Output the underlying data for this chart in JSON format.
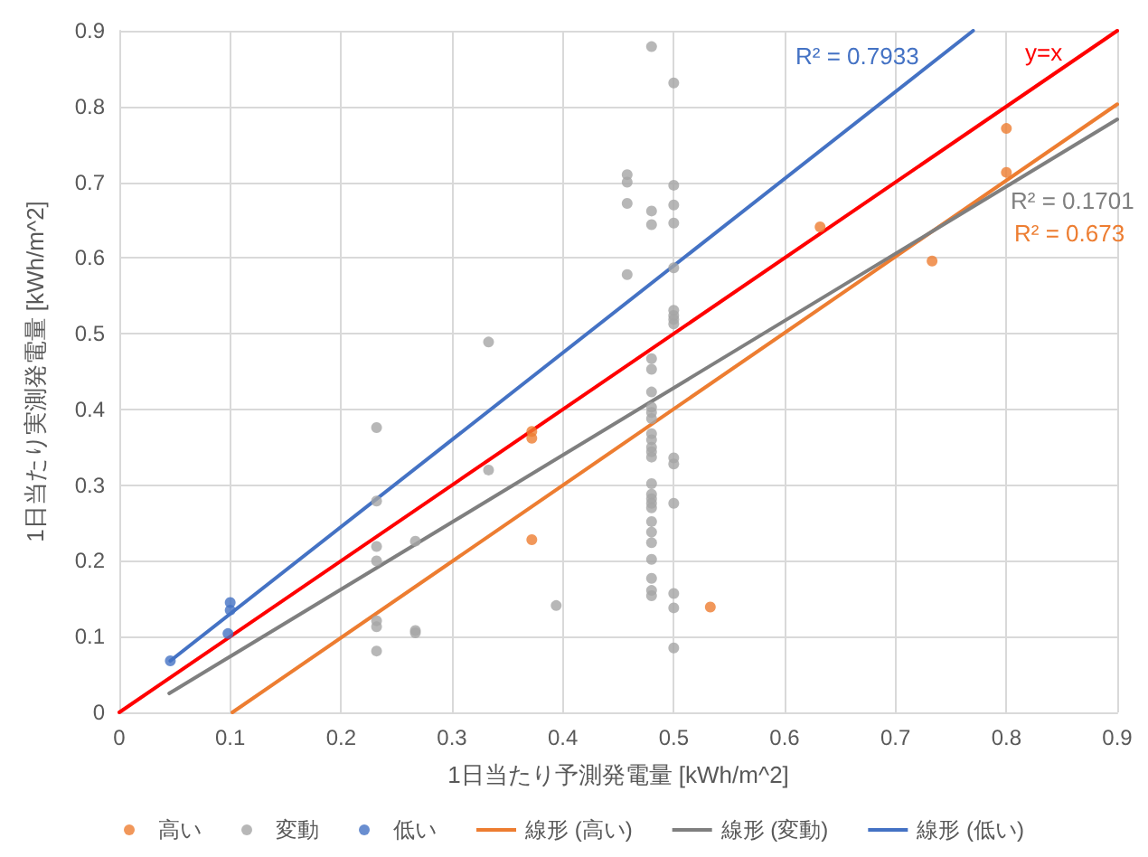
{
  "chart_data": {
    "type": "scatter",
    "xlabel": "1日当たり予測発電量 [kWh/m^2]",
    "ylabel": "1日当たり実測発電量 [kWh/m^2]",
    "xlim": [
      0,
      0.9
    ],
    "ylim": [
      0,
      0.9
    ],
    "xticks": [
      0,
      0.1,
      0.2,
      0.3,
      0.4,
      0.5,
      0.6,
      0.7,
      0.8,
      0.9
    ],
    "yticks": [
      0,
      0.1,
      0.2,
      0.3,
      0.4,
      0.5,
      0.6,
      0.7,
      0.8,
      0.9
    ],
    "grid": true,
    "legend": "bottom",
    "marker": "circle",
    "series": [
      {
        "name": "高い",
        "color": "#ed7d31",
        "x": [
          0.372,
          0.372,
          0.372,
          0.533,
          0.632,
          0.733,
          0.8,
          0.8
        ],
        "values": [
          0.371,
          0.362,
          0.228,
          0.139,
          0.641,
          0.596,
          0.771,
          0.713
        ]
      },
      {
        "name": "変動",
        "color": "#a5a5a5",
        "x": [
          0.232,
          0.232,
          0.232,
          0.232,
          0.232,
          0.232,
          0.232,
          0.267,
          0.267,
          0.267,
          0.333,
          0.333,
          0.394,
          0.458,
          0.458,
          0.458,
          0.458,
          0.48,
          0.48,
          0.48,
          0.48,
          0.48,
          0.48,
          0.48,
          0.48,
          0.48,
          0.48,
          0.48,
          0.48,
          0.48,
          0.48,
          0.48,
          0.48,
          0.48,
          0.48,
          0.48,
          0.48,
          0.48,
          0.48,
          0.48,
          0.48,
          0.48,
          0.48,
          0.5,
          0.5,
          0.5,
          0.5,
          0.5,
          0.5,
          0.5,
          0.5,
          0.5,
          0.5,
          0.5,
          0.5,
          0.5,
          0.5,
          0.5
        ],
        "values": [
          0.376,
          0.279,
          0.219,
          0.2,
          0.121,
          0.113,
          0.081,
          0.226,
          0.108,
          0.105,
          0.489,
          0.32,
          0.141,
          0.71,
          0.7,
          0.672,
          0.578,
          0.879,
          0.662,
          0.644,
          0.467,
          0.453,
          0.423,
          0.403,
          0.396,
          0.388,
          0.368,
          0.36,
          0.35,
          0.344,
          0.337,
          0.302,
          0.288,
          0.282,
          0.276,
          0.27,
          0.252,
          0.238,
          0.224,
          0.202,
          0.177,
          0.161,
          0.154,
          0.831,
          0.696,
          0.67,
          0.646,
          0.587,
          0.531,
          0.524,
          0.519,
          0.513,
          0.336,
          0.328,
          0.276,
          0.157,
          0.138,
          0.085
        ]
      },
      {
        "name": "低い",
        "color": "#4472c4",
        "x": [
          0.046,
          0.098,
          0.1,
          0.1
        ],
        "values": [
          0.068,
          0.104,
          0.135,
          0.145
        ]
      },
      {
        "name": "線形 (高い)",
        "type": "line",
        "marker": "none",
        "color": "#ed7d31",
        "x": [
          0.102,
          0.9
        ],
        "values": [
          0,
          0.803
        ]
      },
      {
        "name": "線形 (変動)",
        "type": "line",
        "marker": "none",
        "color": "#7f7f7f",
        "x": [
          0.045,
          0.9
        ],
        "values": [
          0.025,
          0.783
        ]
      },
      {
        "name": "線形 (低い)",
        "type": "line",
        "marker": "none",
        "color": "#4472c4",
        "x": [
          0.046,
          0.77
        ],
        "values": [
          0.068,
          0.9
        ]
      },
      {
        "type": "line",
        "marker": "none",
        "color": "#ff0000",
        "x": [
          0,
          0.9
        ],
        "values": [
          0,
          0.9
        ]
      }
    ],
    "annotations": [
      "R² = 0.673",
      "R² = 0.1701",
      "R² = 0.7933",
      "y=x"
    ]
  }
}
